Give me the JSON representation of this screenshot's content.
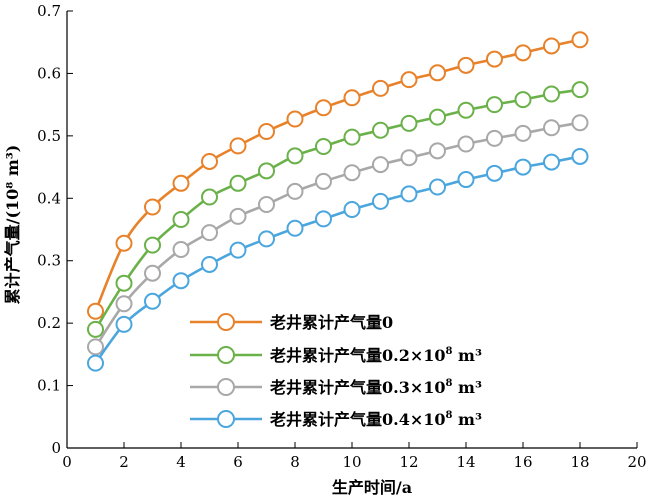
{
  "chart_data": {
    "type": "line",
    "xlabel": "生产时间/a",
    "ylabel": "累计产气量/(10⁸ m³)",
    "xlim": [
      0,
      20
    ],
    "ylim": [
      0,
      0.7
    ],
    "x_ticks": [
      "0",
      "2",
      "4",
      "6",
      "8",
      "10",
      "12",
      "14",
      "16",
      "18",
      "20"
    ],
    "y_ticks": [
      "0",
      "0.1",
      "0.2",
      "0.3",
      "0.4",
      "0.5",
      "0.6",
      "0.7"
    ],
    "grid": false,
    "legend_position": "bottom-center",
    "x": [
      1,
      2,
      3,
      4,
      5,
      6,
      7,
      8,
      9,
      10,
      11,
      12,
      13,
      14,
      15,
      16,
      17,
      18
    ],
    "series": [
      {
        "name": "老井累计产气量0",
        "name_main": "老井累计产气量0",
        "name_mid": "",
        "name_unit": "",
        "color": "#E8822A",
        "values": [
          0.219,
          0.328,
          0.386,
          0.424,
          0.459,
          0.484,
          0.507,
          0.527,
          0.545,
          0.561,
          0.576,
          0.59,
          0.601,
          0.613,
          0.623,
          0.633,
          0.644,
          0.654
        ]
      },
      {
        "name": "老井累计产气量0.2×10⁸ m³",
        "name_main": "老井累计产气量0.2×10",
        "name_mid": "8",
        "name_unit": " m³",
        "color": "#6AB14A",
        "values": [
          0.19,
          0.264,
          0.325,
          0.366,
          0.402,
          0.424,
          0.444,
          0.468,
          0.483,
          0.498,
          0.509,
          0.52,
          0.53,
          0.541,
          0.55,
          0.558,
          0.567,
          0.574
        ]
      },
      {
        "name": "老井累计产气量0.3×10⁸ m³",
        "name_main": "老井累计产气量0.3×10",
        "name_mid": "8",
        "name_unit": " m³",
        "color": "#A8A8A8",
        "values": [
          0.162,
          0.231,
          0.28,
          0.318,
          0.345,
          0.371,
          0.39,
          0.411,
          0.427,
          0.441,
          0.454,
          0.465,
          0.476,
          0.487,
          0.496,
          0.504,
          0.513,
          0.521
        ]
      },
      {
        "name": "老井累计产气量0.4×10⁸ m³",
        "name_main": "老井累计产气量0.4×10",
        "name_mid": "8",
        "name_unit": " m³",
        "color": "#4BA6DE",
        "values": [
          0.136,
          0.198,
          0.235,
          0.268,
          0.294,
          0.317,
          0.335,
          0.352,
          0.367,
          0.382,
          0.395,
          0.407,
          0.418,
          0.43,
          0.44,
          0.45,
          0.458,
          0.467
        ]
      }
    ]
  }
}
